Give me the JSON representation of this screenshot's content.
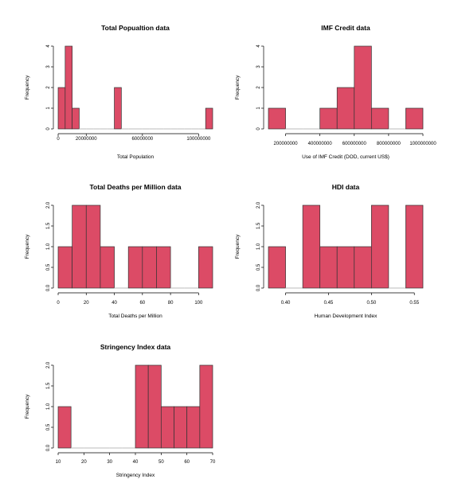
{
  "colors": {
    "bar": "#dc4b66",
    "bar_stroke": "#333333",
    "axis": "#000000",
    "baseline": "#bbbbbb"
  },
  "chart_data": [
    {
      "type": "bar",
      "title": "Total Popualtion data",
      "xlabel": "Total Population",
      "ylabel": "Frequency",
      "bins": [
        [
          0,
          5000000
        ],
        [
          5000000,
          10000000
        ],
        [
          10000000,
          15000000
        ],
        [
          15000000,
          20000000
        ],
        [
          20000000,
          25000000
        ],
        [
          25000000,
          30000000
        ],
        [
          30000000,
          35000000
        ],
        [
          35000000,
          40000000
        ],
        [
          40000000,
          45000000
        ],
        [
          45000000,
          50000000
        ],
        [
          50000000,
          55000000
        ],
        [
          55000000,
          60000000
        ],
        [
          60000000,
          65000000
        ],
        [
          65000000,
          70000000
        ],
        [
          70000000,
          75000000
        ],
        [
          75000000,
          80000000
        ],
        [
          80000000,
          85000000
        ],
        [
          85000000,
          90000000
        ],
        [
          90000000,
          95000000
        ],
        [
          95000000,
          100000000
        ],
        [
          100000000,
          105000000
        ],
        [
          105000000,
          110000000
        ]
      ],
      "values": [
        2,
        4,
        1,
        0,
        0,
        0,
        0,
        0,
        2,
        0,
        0,
        0,
        0,
        0,
        0,
        0,
        0,
        0,
        0,
        0,
        0,
        1
      ],
      "xticks": [
        0,
        20000000,
        60000000,
        100000000
      ],
      "xtick_labels": [
        "0",
        "20000000",
        "60000000",
        "100000000"
      ],
      "xaxis_range": [
        0,
        100000000
      ],
      "yticks": [
        0,
        1,
        2,
        3,
        4
      ],
      "ytick_labels": [
        "0",
        "1",
        "2",
        "3",
        "4"
      ],
      "ylim": [
        0,
        4
      ]
    },
    {
      "type": "bar",
      "title": "IMF Credit data",
      "xlabel": "Use of IMF Credit (DOD, current US$)",
      "ylabel": "Frequency",
      "bins": [
        [
          100000000,
          200000000
        ],
        [
          200000000,
          300000000
        ],
        [
          300000000,
          400000000
        ],
        [
          400000000,
          500000000
        ],
        [
          500000000,
          600000000
        ],
        [
          600000000,
          700000000
        ],
        [
          700000000,
          800000000
        ],
        [
          800000000,
          900000000
        ],
        [
          900000000,
          1000000000
        ]
      ],
      "values": [
        1,
        0,
        0,
        1,
        2,
        4,
        1,
        0,
        1
      ],
      "xticks": [
        200000000,
        400000000,
        600000000,
        800000000,
        1000000000
      ],
      "xtick_labels": [
        "200000000",
        "400000000",
        "600000000",
        "800000000",
        "1000000000"
      ],
      "xaxis_range": [
        200000000,
        1000000000
      ],
      "yticks": [
        0,
        1,
        2,
        3,
        4
      ],
      "ytick_labels": [
        "0",
        "1",
        "2",
        "3",
        "4"
      ],
      "ylim": [
        0,
        4
      ]
    },
    {
      "type": "bar",
      "title": "Total Deaths per Million data",
      "xlabel": "Total Deaths per Million",
      "ylabel": "Frequency",
      "bins": [
        [
          0,
          10
        ],
        [
          10,
          20
        ],
        [
          20,
          30
        ],
        [
          30,
          40
        ],
        [
          40,
          50
        ],
        [
          50,
          60
        ],
        [
          60,
          70
        ],
        [
          70,
          80
        ],
        [
          80,
          90
        ],
        [
          90,
          100
        ],
        [
          100,
          110
        ]
      ],
      "values": [
        1,
        2,
        2,
        1,
        0,
        1,
        1,
        1,
        0,
        0,
        1
      ],
      "xticks": [
        0,
        20,
        40,
        60,
        80,
        100
      ],
      "xtick_labels": [
        "0",
        "20",
        "40",
        "60",
        "80",
        "100"
      ],
      "xaxis_range": [
        0,
        100
      ],
      "yticks": [
        0,
        0.5,
        1,
        1.5,
        2
      ],
      "ytick_labels": [
        "0.0",
        "0.5",
        "1.0",
        "1.5",
        "2.0"
      ],
      "ylim": [
        0,
        2
      ]
    },
    {
      "type": "bar",
      "title": "HDI data",
      "xlabel": "Human Development Index",
      "ylabel": "Frequency",
      "bins": [
        [
          0.38,
          0.4
        ],
        [
          0.4,
          0.42
        ],
        [
          0.42,
          0.44
        ],
        [
          0.44,
          0.46
        ],
        [
          0.46,
          0.48
        ],
        [
          0.48,
          0.5
        ],
        [
          0.5,
          0.52
        ],
        [
          0.52,
          0.54
        ],
        [
          0.54,
          0.56
        ]
      ],
      "values": [
        1,
        0,
        2,
        1,
        1,
        1,
        2,
        0,
        2
      ],
      "xticks": [
        0.4,
        0.45,
        0.5,
        0.55
      ],
      "xtick_labels": [
        "0.40",
        "0.45",
        "0.50",
        "0.55"
      ],
      "xaxis_range": [
        0.4,
        0.55
      ],
      "yticks": [
        0,
        0.5,
        1,
        1.5,
        2
      ],
      "ytick_labels": [
        "0.0",
        "0.5",
        "1.0",
        "1.5",
        "2.0"
      ],
      "ylim": [
        0,
        2
      ]
    },
    {
      "type": "bar",
      "title": "Stringency Index data",
      "xlabel": "Stringency Index",
      "ylabel": "Frequency",
      "bins": [
        [
          10,
          15
        ],
        [
          15,
          20
        ],
        [
          20,
          25
        ],
        [
          25,
          30
        ],
        [
          30,
          35
        ],
        [
          35,
          40
        ],
        [
          40,
          45
        ],
        [
          45,
          50
        ],
        [
          50,
          55
        ],
        [
          55,
          60
        ],
        [
          60,
          65
        ],
        [
          65,
          70
        ]
      ],
      "values": [
        1,
        0,
        0,
        0,
        0,
        0,
        2,
        2,
        1,
        1,
        1,
        2
      ],
      "xticks": [
        10,
        20,
        30,
        40,
        50,
        60,
        70
      ],
      "xtick_labels": [
        "10",
        "20",
        "30",
        "40",
        "50",
        "60",
        "70"
      ],
      "xaxis_range": [
        10,
        70
      ],
      "yticks": [
        0,
        0.5,
        1,
        1.5,
        2
      ],
      "ytick_labels": [
        "0.0",
        "0.5",
        "1.0",
        "1.5",
        "2.0"
      ],
      "ylim": [
        0,
        2
      ]
    }
  ]
}
